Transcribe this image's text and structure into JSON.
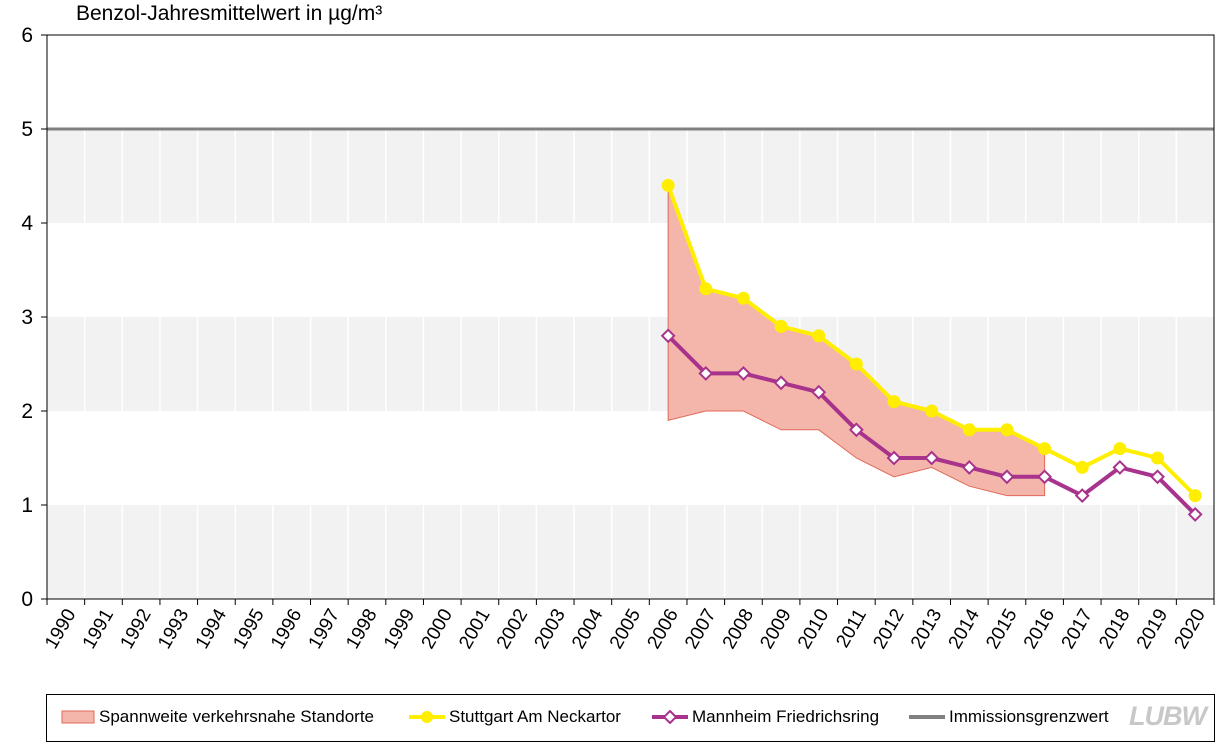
{
  "chart_data": {
    "type": "line",
    "title": "Benzol-Jahresmittelwert in µg/m³",
    "ylim": [
      0,
      6
    ],
    "yticks": [
      "0",
      "1",
      "2",
      "3",
      "4",
      "5",
      "6"
    ],
    "categories": [
      "1990",
      "1991",
      "1992",
      "1993",
      "1994",
      "1995",
      "1996",
      "1997",
      "1998",
      "1999",
      "2000",
      "2001",
      "2002",
      "2003",
      "2004",
      "2005",
      "2006",
      "2007",
      "2008",
      "2009",
      "2010",
      "2011",
      "2012",
      "2013",
      "2014",
      "2015",
      "2016",
      "2017",
      "2018",
      "2019",
      "2020"
    ],
    "grid": "vertical",
    "legend_position": "bottom",
    "band": {
      "name": "Spannweite verkehrsnahe Standorte",
      "color": "#f4b6aa",
      "edge_color": "#e06a5a",
      "x": [
        "2006",
        "2007",
        "2008",
        "2009",
        "2010",
        "2011",
        "2012",
        "2013",
        "2014",
        "2015",
        "2016"
      ],
      "upper": [
        4.4,
        3.3,
        3.2,
        2.9,
        2.8,
        2.5,
        2.1,
        2.0,
        1.8,
        1.8,
        1.6
      ],
      "lower": [
        1.9,
        2.0,
        2.0,
        1.8,
        1.8,
        1.5,
        1.3,
        1.4,
        1.2,
        1.1,
        1.1
      ]
    },
    "series": [
      {
        "name": "Stuttgart Am Neckartor",
        "color": "#ffee00",
        "marker": "circle",
        "x": [
          "2006",
          "2007",
          "2008",
          "2009",
          "2010",
          "2011",
          "2012",
          "2013",
          "2014",
          "2015",
          "2016",
          "2017",
          "2018",
          "2019",
          "2020"
        ],
        "values": [
          4.4,
          3.3,
          3.2,
          2.9,
          2.8,
          2.5,
          2.1,
          2.0,
          1.8,
          1.8,
          1.6,
          1.4,
          1.6,
          1.5,
          1.1
        ]
      },
      {
        "name": "Mannheim Friedrichsring",
        "color": "#a8338c",
        "marker": "diamond",
        "x": [
          "2006",
          "2007",
          "2008",
          "2009",
          "2010",
          "2011",
          "2012",
          "2013",
          "2014",
          "2015",
          "2016",
          "2017",
          "2018",
          "2019",
          "2020"
        ],
        "values": [
          2.8,
          2.4,
          2.4,
          2.3,
          2.2,
          1.8,
          1.5,
          1.5,
          1.4,
          1.3,
          1.3,
          1.1,
          1.4,
          1.3,
          0.9
        ]
      }
    ],
    "limit_line": {
      "name": "Immissionsgrenzwert",
      "value": 5,
      "color": "#808080"
    }
  },
  "logo_text": "LUBW"
}
